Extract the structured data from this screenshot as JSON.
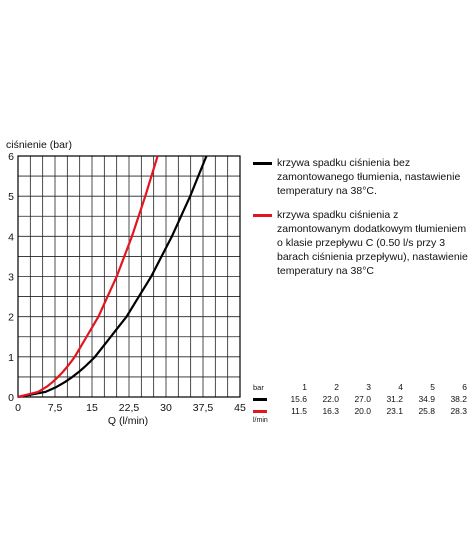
{
  "chart_data": {
    "type": "line",
    "ylabel": "ciśnienie (bar)",
    "xlabel": "Q  (l/min)",
    "xlim": [
      0,
      45
    ],
    "ylim": [
      0,
      6
    ],
    "x_ticks": [
      "0",
      "7,5",
      "15",
      "22,5",
      "30",
      "37,5",
      "45"
    ],
    "y_ticks": [
      "0",
      "1",
      "2",
      "3",
      "4",
      "5",
      "6"
    ],
    "grid": true,
    "series": [
      {
        "name": "krzywa spadku ciśnienia bez zamontowanego tłumienia, nastawienie temperatury na 38°C.",
        "color": "#000000",
        "x": [
          0,
          15.6,
          22.0,
          27.0,
          31.2,
          34.9,
          38.2
        ],
        "y": [
          0,
          1,
          2,
          3,
          4,
          5,
          6
        ]
      },
      {
        "name": "krzywa spadku ciśnienia z zamontowanym dodatkowym tłumieniem o klasie przepływu C (0.50 l/s przy 3 barach ciśnienia przepływu), nastawienie temperatury na 38°C",
        "color": "#e3151f",
        "x": [
          0,
          11.5,
          16.3,
          20.0,
          23.1,
          25.8,
          28.3
        ],
        "y": [
          0,
          1,
          2,
          3,
          4,
          5,
          6
        ]
      }
    ],
    "table": {
      "bar_label": "bar",
      "unit_label": "l/min",
      "bar_values": [
        "1",
        "2",
        "3",
        "4",
        "5",
        "6"
      ],
      "rows": [
        {
          "color": "#000000",
          "values": [
            "15.6",
            "22.0",
            "27.0",
            "31.2",
            "34.9",
            "38.2"
          ]
        },
        {
          "color": "#e3151f",
          "values": [
            "11.5",
            "16.3",
            "20.0",
            "23.1",
            "25.8",
            "28.3"
          ]
        }
      ]
    }
  }
}
